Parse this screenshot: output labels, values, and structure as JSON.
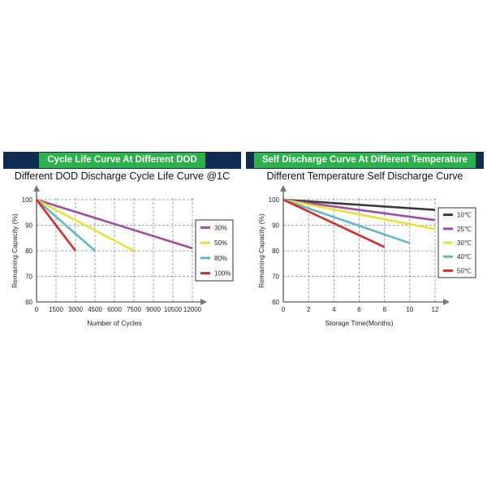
{
  "chart_data": [
    {
      "type": "line",
      "banner": "Cycle Life Curve At Different DOD",
      "title": "Different DOD Discharge Cycle Life Curve @1C",
      "xlabel": "Number of Cycles",
      "ylabel": "Remaining Capacity (%)",
      "xlim": [
        0,
        12000
      ],
      "ylim": [
        60,
        100
      ],
      "xticks": [
        0,
        1500,
        3000,
        4500,
        6000,
        7500,
        9000,
        10500,
        12000
      ],
      "yticks": [
        60,
        70,
        80,
        90,
        100
      ],
      "grid": true,
      "legend_position": "right",
      "series": [
        {
          "name": "30%",
          "color": "#a44b9c",
          "x": [
            0,
            12000
          ],
          "y": [
            100,
            81
          ]
        },
        {
          "name": "50%",
          "color": "#ede033",
          "x": [
            0,
            7500
          ],
          "y": [
            100,
            80
          ]
        },
        {
          "name": "80%",
          "color": "#5bbac5",
          "x": [
            0,
            4500
          ],
          "y": [
            100,
            80
          ]
        },
        {
          "name": "100%",
          "color": "#dc2828",
          "x": [
            0,
            3000
          ],
          "y": [
            100,
            80
          ]
        }
      ]
    },
    {
      "type": "line",
      "banner": "Self Discharge Curve At Different Temperature",
      "title": "Different Temperature Self Discharge Curve",
      "xlabel": "Storage Time(Months)",
      "ylabel": "Remaining Capacity (%)",
      "xlim": [
        0,
        12
      ],
      "ylim": [
        60,
        100
      ],
      "xticks": [
        0,
        2,
        4,
        6,
        8,
        10,
        12
      ],
      "yticks": [
        60,
        70,
        80,
        90,
        100
      ],
      "grid": true,
      "legend_position": "right",
      "series": [
        {
          "name": "10℃",
          "color": "#3a3a3a",
          "x": [
            0,
            12
          ],
          "y": [
            100,
            96
          ]
        },
        {
          "name": "25℃",
          "color": "#a44b9c",
          "x": [
            0,
            12
          ],
          "y": [
            100,
            92
          ]
        },
        {
          "name": "30℃",
          "color": "#ede033",
          "x": [
            0,
            12
          ],
          "y": [
            100,
            88.5
          ]
        },
        {
          "name": "40℃",
          "color": "#5bbac5",
          "x": [
            0,
            10
          ],
          "y": [
            100,
            83
          ]
        },
        {
          "name": "50℃",
          "color": "#dc2828",
          "x": [
            0,
            8
          ],
          "y": [
            100,
            81.5
          ]
        }
      ]
    }
  ]
}
